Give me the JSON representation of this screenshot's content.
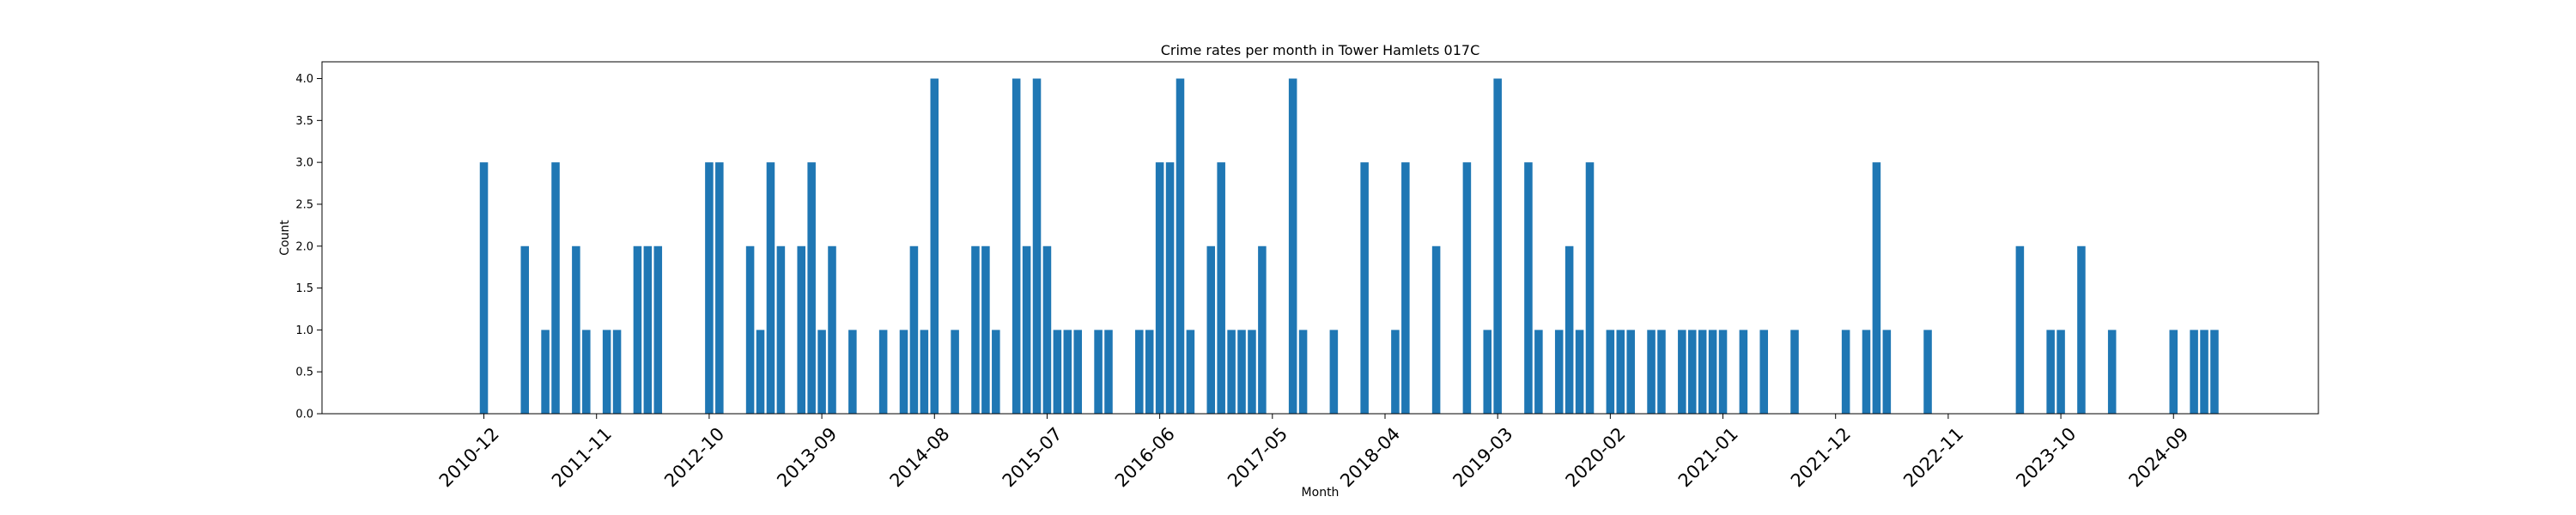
{
  "chart_data": {
    "type": "bar",
    "title": "Crime rates per month in Tower Hamlets 017C",
    "xlabel": "Month",
    "ylabel": "Count",
    "ylim": [
      0,
      4.2
    ],
    "yticks": [
      "0.0",
      "0.5",
      "1.0",
      "1.5",
      "2.0",
      "2.5",
      "3.0",
      "3.5",
      "4.0"
    ],
    "xticks": [
      "2010-12",
      "2011-11",
      "2012-10",
      "2013-09",
      "2014-08",
      "2015-07",
      "2016-06",
      "2017-05",
      "2018-04",
      "2019-03",
      "2020-02",
      "2021-01",
      "2021-12",
      "2022-11",
      "2023-10",
      "2024-09"
    ],
    "color": "#1f77b4",
    "grid": false,
    "data": [
      [
        "2010-12",
        3
      ],
      [
        "2011-04",
        2
      ],
      [
        "2011-06",
        1
      ],
      [
        "2011-07",
        3
      ],
      [
        "2011-09",
        2
      ],
      [
        "2011-10",
        1
      ],
      [
        "2011-12",
        1
      ],
      [
        "2012-01",
        1
      ],
      [
        "2012-03",
        2
      ],
      [
        "2012-04",
        2
      ],
      [
        "2012-05",
        2
      ],
      [
        "2012-10",
        3
      ],
      [
        "2012-11",
        3
      ],
      [
        "2013-02",
        2
      ],
      [
        "2013-03",
        1
      ],
      [
        "2013-04",
        3
      ],
      [
        "2013-05",
        2
      ],
      [
        "2013-07",
        2
      ],
      [
        "2013-08",
        3
      ],
      [
        "2013-09",
        1
      ],
      [
        "2013-10",
        2
      ],
      [
        "2013-12",
        1
      ],
      [
        "2014-03",
        1
      ],
      [
        "2014-05",
        1
      ],
      [
        "2014-06",
        2
      ],
      [
        "2014-07",
        1
      ],
      [
        "2014-08",
        4
      ],
      [
        "2014-10",
        1
      ],
      [
        "2014-12",
        2
      ],
      [
        "2015-01",
        2
      ],
      [
        "2015-02",
        1
      ],
      [
        "2015-04",
        4
      ],
      [
        "2015-05",
        2
      ],
      [
        "2015-06",
        4
      ],
      [
        "2015-07",
        2
      ],
      [
        "2015-08",
        1
      ],
      [
        "2015-09",
        1
      ],
      [
        "2015-10",
        1
      ],
      [
        "2015-12",
        1
      ],
      [
        "2016-01",
        1
      ],
      [
        "2016-04",
        1
      ],
      [
        "2016-05",
        1
      ],
      [
        "2016-06",
        3
      ],
      [
        "2016-07",
        3
      ],
      [
        "2016-08",
        4
      ],
      [
        "2016-09",
        1
      ],
      [
        "2016-11",
        2
      ],
      [
        "2016-12",
        3
      ],
      [
        "2017-01",
        1
      ],
      [
        "2017-02",
        1
      ],
      [
        "2017-03",
        1
      ],
      [
        "2017-04",
        2
      ],
      [
        "2017-07",
        4
      ],
      [
        "2017-08",
        1
      ],
      [
        "2017-11",
        1
      ],
      [
        "2018-02",
        3
      ],
      [
        "2018-05",
        1
      ],
      [
        "2018-06",
        3
      ],
      [
        "2018-09",
        2
      ],
      [
        "2018-12",
        3
      ],
      [
        "2019-02",
        1
      ],
      [
        "2019-03",
        4
      ],
      [
        "2019-06",
        3
      ],
      [
        "2019-07",
        1
      ],
      [
        "2019-09",
        1
      ],
      [
        "2019-10",
        2
      ],
      [
        "2019-11",
        1
      ],
      [
        "2019-12",
        3
      ],
      [
        "2020-02",
        1
      ],
      [
        "2020-03",
        1
      ],
      [
        "2020-04",
        1
      ],
      [
        "2020-06",
        1
      ],
      [
        "2020-07",
        1
      ],
      [
        "2020-09",
        1
      ],
      [
        "2020-10",
        1
      ],
      [
        "2020-11",
        1
      ],
      [
        "2020-12",
        1
      ],
      [
        "2021-01",
        1
      ],
      [
        "2021-03",
        1
      ],
      [
        "2021-05",
        1
      ],
      [
        "2021-08",
        1
      ],
      [
        "2022-01",
        1
      ],
      [
        "2022-03",
        1
      ],
      [
        "2022-04",
        3
      ],
      [
        "2022-05",
        1
      ],
      [
        "2022-09",
        1
      ],
      [
        "2023-06",
        2
      ],
      [
        "2023-09",
        1
      ],
      [
        "2023-10",
        1
      ],
      [
        "2023-12",
        2
      ],
      [
        "2024-03",
        1
      ],
      [
        "2024-09",
        1
      ],
      [
        "2024-11",
        1
      ],
      [
        "2024-12",
        1
      ],
      [
        "2025-01",
        1
      ]
    ]
  }
}
